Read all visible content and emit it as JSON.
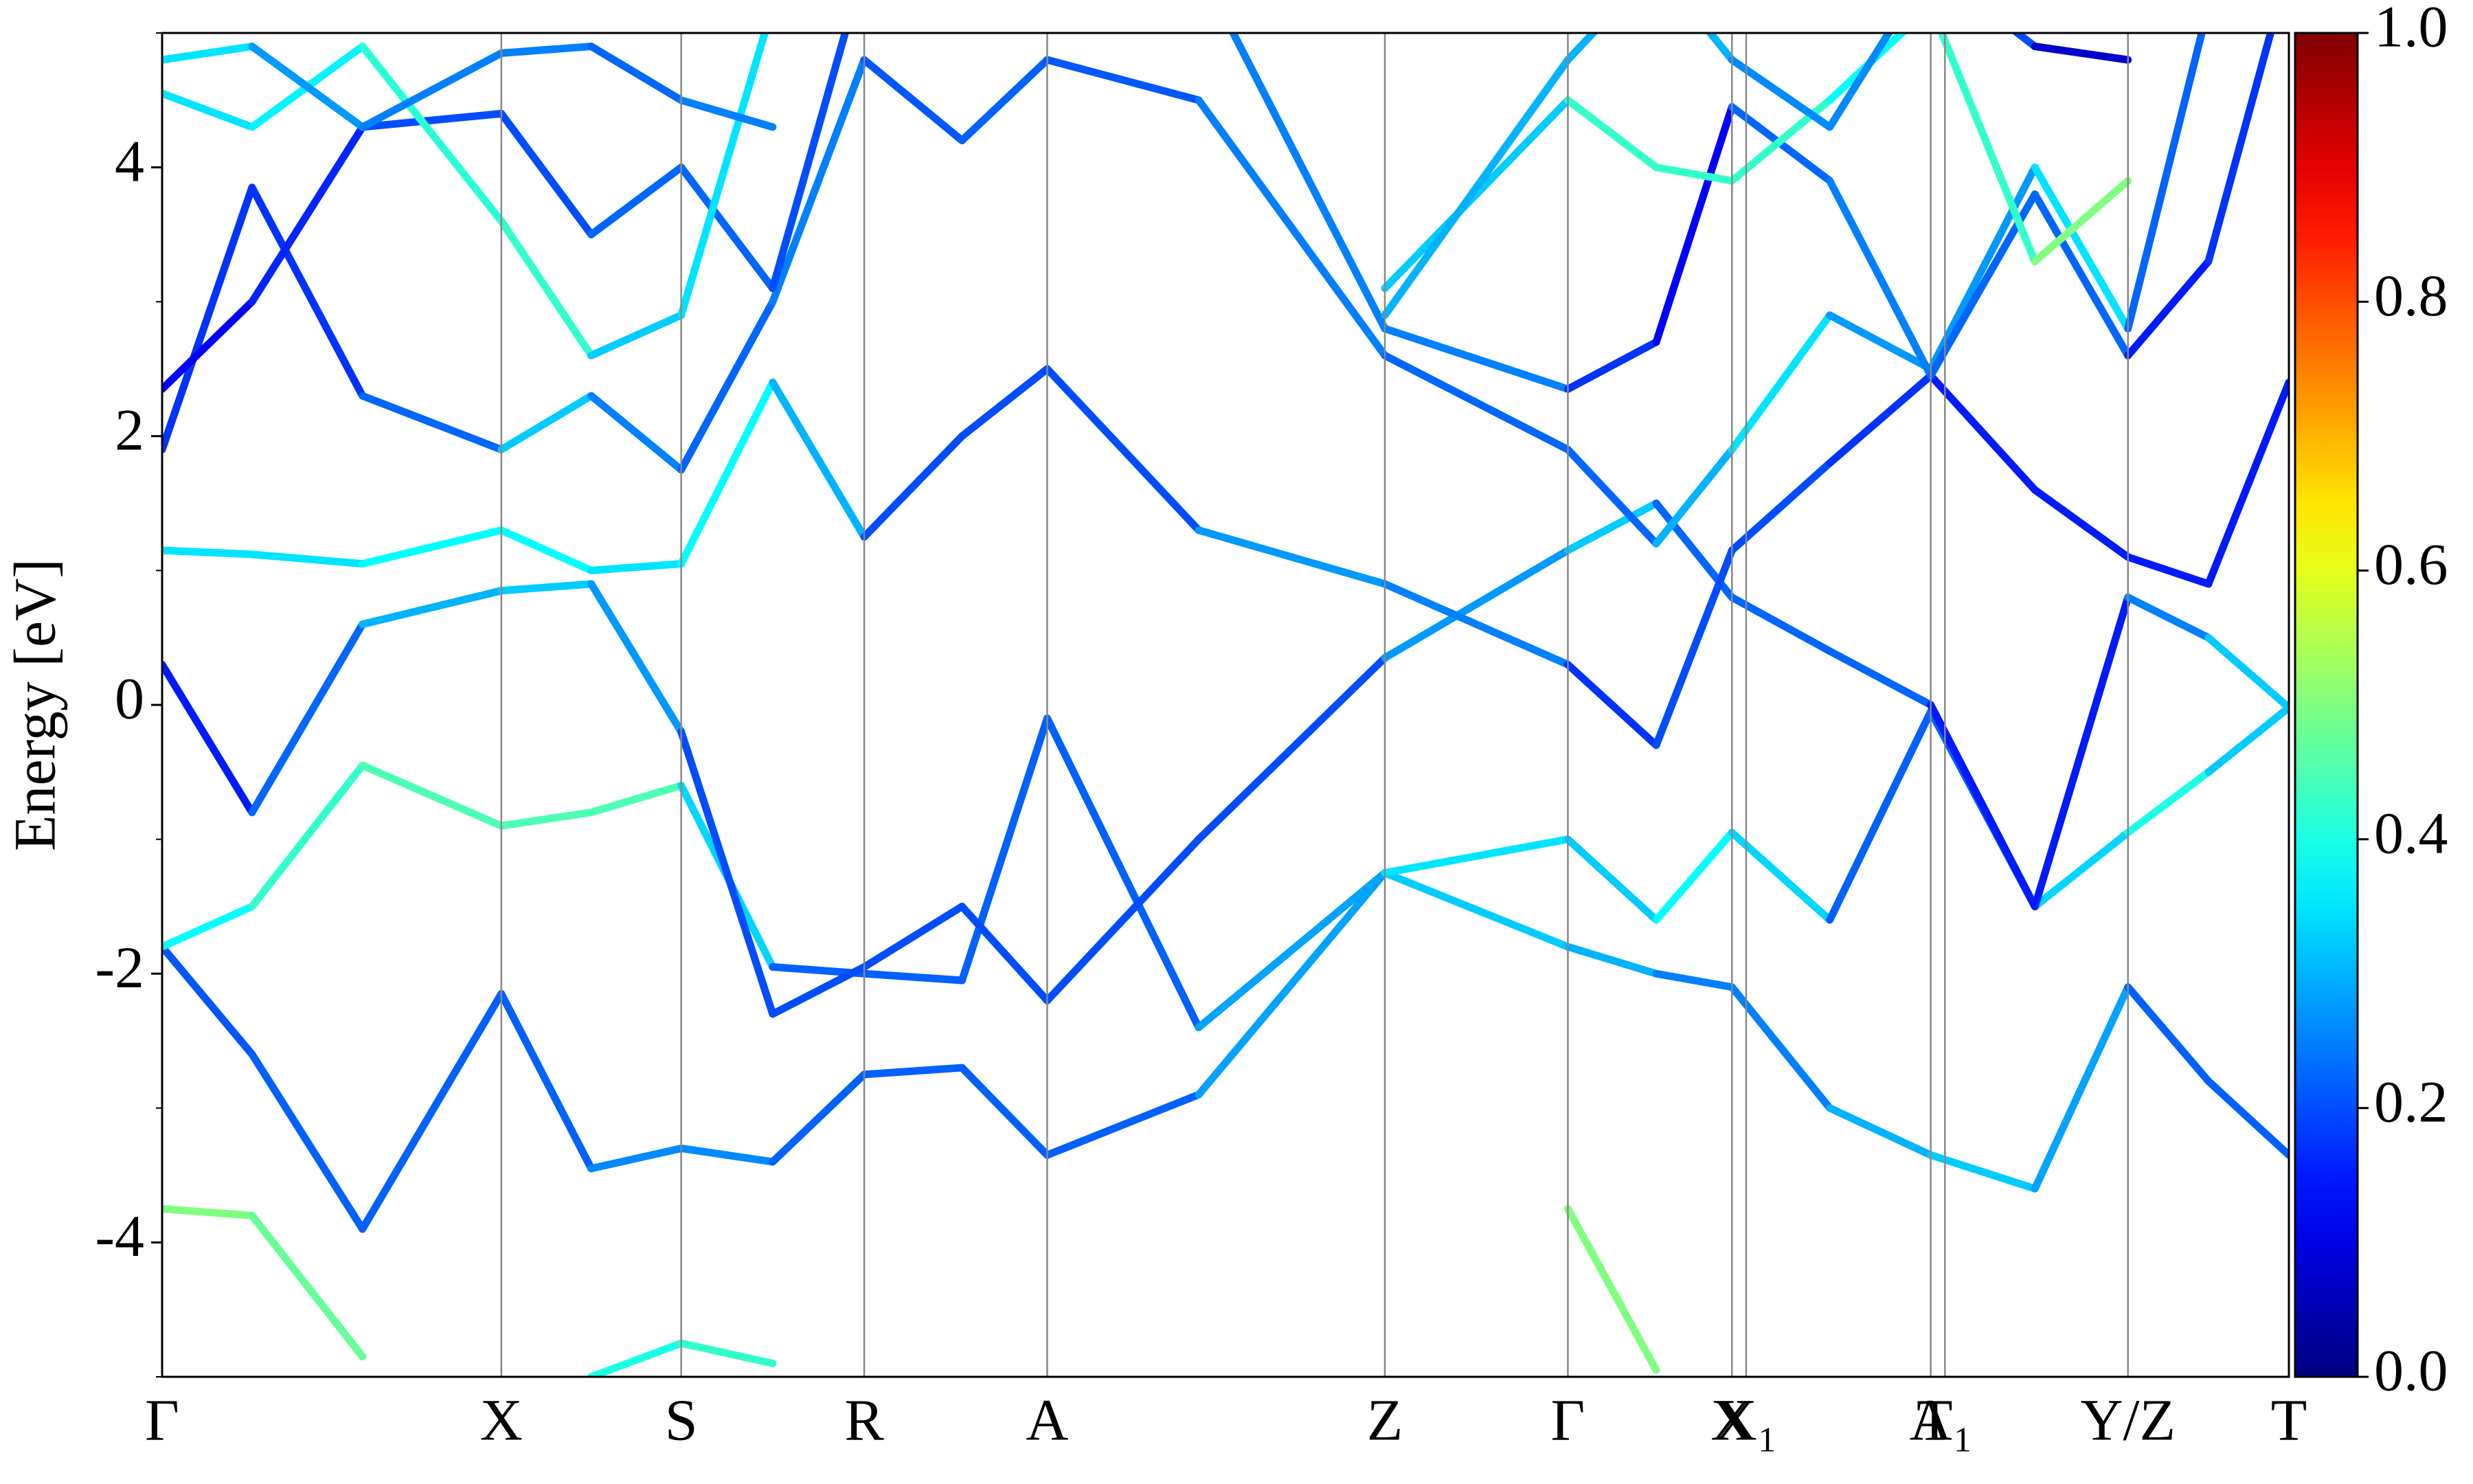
{
  "chart_data": {
    "type": "bands",
    "ylabel": "Energy [eV]",
    "ylim": [
      -5,
      5
    ],
    "yticks": [
      -4,
      -2,
      0,
      2,
      4
    ],
    "yminorticks": [
      -5,
      -3,
      -1,
      1,
      3,
      5
    ],
    "xlim": [
      0,
      13.48
    ],
    "xticks": [
      {
        "value": 0,
        "label": "Γ"
      },
      {
        "value": 2.15,
        "label": "X"
      },
      {
        "value": 3.29,
        "label": "S"
      },
      {
        "value": 4.45,
        "label": "R"
      },
      {
        "value": 5.61,
        "label": "A"
      },
      {
        "value": 7.75,
        "label": "Z"
      },
      {
        "value": 8.91,
        "label": "Γ"
      },
      {
        "value": 9.95,
        "label": "X"
      },
      {
        "value": 10.04,
        "label": "X₁"
      },
      {
        "value": 11.21,
        "label": "A"
      },
      {
        "value": 11.3,
        "label": "T₁"
      },
      {
        "value": 12.46,
        "label": "Y/Z"
      },
      {
        "value": 13.48,
        "label": "T"
      }
    ],
    "x": [
      0,
      0.57,
      1.27,
      2.15,
      2.72,
      3.29,
      3.87,
      4.45,
      5.07,
      5.61,
      6.57,
      7.75,
      8.91,
      9.47,
      9.95,
      10.57,
      11.21,
      11.87,
      12.46,
      12.97,
      13.48
    ],
    "clim": [
      0,
      1
    ],
    "cticks": [
      {
        "value": 0,
        "label": "0.0"
      },
      0.2,
      0.4,
      0.6,
      0.8,
      {
        "value": 1,
        "label": "1.0"
      }
    ],
    "series": [
      {
        "values": [
          -3.75,
          -3.8,
          -4.85,
          null,
          -5.0,
          -4.75,
          -4.9,
          null,
          null,
          null,
          null,
          null,
          -3.75,
          -4.95,
          null,
          null,
          null,
          null,
          null,
          null,
          null
        ],
        "weights": [
          0.5,
          0.5,
          0.45,
          null,
          0.4,
          0.4,
          0.45,
          null,
          null,
          null,
          null,
          null,
          0.55,
          0.45,
          null,
          null,
          null,
          null,
          null,
          null,
          null
        ]
      },
      {
        "values": [
          -1.8,
          -2.6,
          -3.9,
          -2.15,
          -3.45,
          -3.3,
          -3.4,
          -2.75,
          -2.7,
          -3.35,
          -2.9,
          -1.25,
          -1.8,
          -2.0,
          -2.1,
          -3.0,
          -3.35,
          -3.6,
          -2.1,
          -2.8,
          -3.35
        ],
        "weights": [
          0.2,
          0.22,
          0.22,
          0.22,
          0.22,
          0.3,
          0.22,
          0.22,
          0.22,
          0.22,
          0.22,
          0.35,
          0.3,
          0.3,
          0.2,
          0.3,
          0.3,
          0.35,
          0.22,
          0.22,
          0.22
        ]
      },
      {
        "values": [
          -1.8,
          -1.5,
          -0.45,
          -0.9,
          -0.8,
          -0.6,
          -1.95,
          -2.0,
          -2.05,
          -0.1,
          -2.4,
          -1.25,
          -1.0,
          -1.6,
          -0.95,
          -1.6,
          -0.05,
          -1.5,
          -0.95,
          -0.5,
          -0.02
        ],
        "weights": [
          0.35,
          0.4,
          0.45,
          0.45,
          0.45,
          0.45,
          0.22,
          0.22,
          0.22,
          0.22,
          0.22,
          0.35,
          0.35,
          0.3,
          0.45,
          0.22,
          0.22,
          0.22,
          0.45,
          0.35,
          0.3
        ]
      },
      {
        "values": [
          0.3,
          -0.8,
          0.6,
          0.85,
          0.9,
          -0.2,
          -2.3,
          -1.95,
          -1.5,
          -2.2,
          -1.0,
          0.35,
          1.15,
          1.5,
          0.8,
          0.4,
          0.0,
          -1.5,
          0.8,
          0.5,
          -0.02
        ],
        "weights": [
          0.15,
          0.15,
          0.3,
          0.3,
          0.35,
          0.2,
          0.2,
          0.2,
          0.2,
          0.2,
          0.2,
          0.2,
          0.35,
          0.3,
          0.15,
          0.3,
          0.15,
          0.15,
          0.15,
          0.35,
          0.3
        ]
      },
      {
        "values": [
          1.15,
          1.12,
          1.05,
          1.3,
          1.0,
          1.05,
          2.4,
          1.25,
          2.0,
          2.5,
          1.3,
          0.9,
          0.3,
          -0.3,
          1.15,
          1.8,
          2.45,
          1.6,
          1.1,
          0.9,
          2.4
        ],
        "weights": [
          0.35,
          0.35,
          0.35,
          0.4,
          0.35,
          0.35,
          0.4,
          0.2,
          0.2,
          0.2,
          0.2,
          0.35,
          0.15,
          0.2,
          0.2,
          0.2,
          0.15,
          0.15,
          0.15,
          0.15,
          0.15
        ]
      },
      {
        "values": [
          1.9,
          3.85,
          2.3,
          1.9,
          2.3,
          1.75,
          3.0,
          4.8,
          4.2,
          4.8,
          4.5,
          2.6,
          1.9,
          1.2,
          1.9,
          2.9,
          2.5,
          4.0,
          2.8,
          5.2,
          5.6
        ],
        "weights": [
          0.15,
          0.2,
          0.15,
          0.3,
          0.35,
          0.15,
          0.3,
          0.2,
          0.22,
          0.22,
          0.2,
          0.3,
          0.15,
          0.3,
          0.3,
          0.4,
          0.15,
          0.4,
          0.3,
          0.15,
          0.15
        ]
      },
      {
        "values": [
          2.35,
          3.0,
          4.3,
          4.4,
          3.5,
          4.0,
          3.1,
          5.5,
          5.3,
          5.5,
          5.5,
          2.8,
          2.35,
          2.7,
          4.45,
          3.9,
          2.45,
          3.8,
          2.6,
          3.3,
          5.5
        ],
        "weights": [
          0.12,
          0.12,
          0.2,
          0.2,
          0.2,
          0.25,
          0.2,
          0.2,
          0.2,
          0.2,
          0.2,
          0.3,
          0.2,
          0.15,
          0.1,
          0.35,
          0.15,
          0.3,
          0.15,
          0.15,
          0.2
        ]
      },
      {
        "values": [
          4.55,
          4.3,
          4.9,
          3.6,
          2.6,
          2.9,
          5.2,
          null,
          null,
          null,
          null,
          3.1,
          4.5,
          4.0,
          3.9,
          4.5,
          5.2,
          3.3,
          3.9,
          null,
          null
        ],
        "weights": [
          0.35,
          0.35,
          0.38,
          0.45,
          0.4,
          0.25,
          0.45,
          null,
          null,
          null,
          null,
          0.2,
          0.45,
          0.4,
          0.45,
          0.4,
          0.35,
          0.5,
          0.5,
          null,
          null
        ]
      },
      {
        "values": [
          4.8,
          4.9,
          4.3,
          4.85,
          4.9,
          4.5,
          4.3,
          null,
          null,
          null,
          null,
          2.9,
          4.8,
          5.5,
          4.8,
          4.3,
          5.5,
          4.9,
          4.8,
          null,
          null
        ],
        "weights": [
          0.35,
          0.35,
          0.2,
          0.3,
          0.2,
          0.25,
          0.25,
          null,
          null,
          null,
          null,
          0.3,
          0.3,
          0.3,
          0.3,
          0.22,
          0.3,
          0.1,
          0.05,
          null,
          null
        ]
      }
    ]
  }
}
